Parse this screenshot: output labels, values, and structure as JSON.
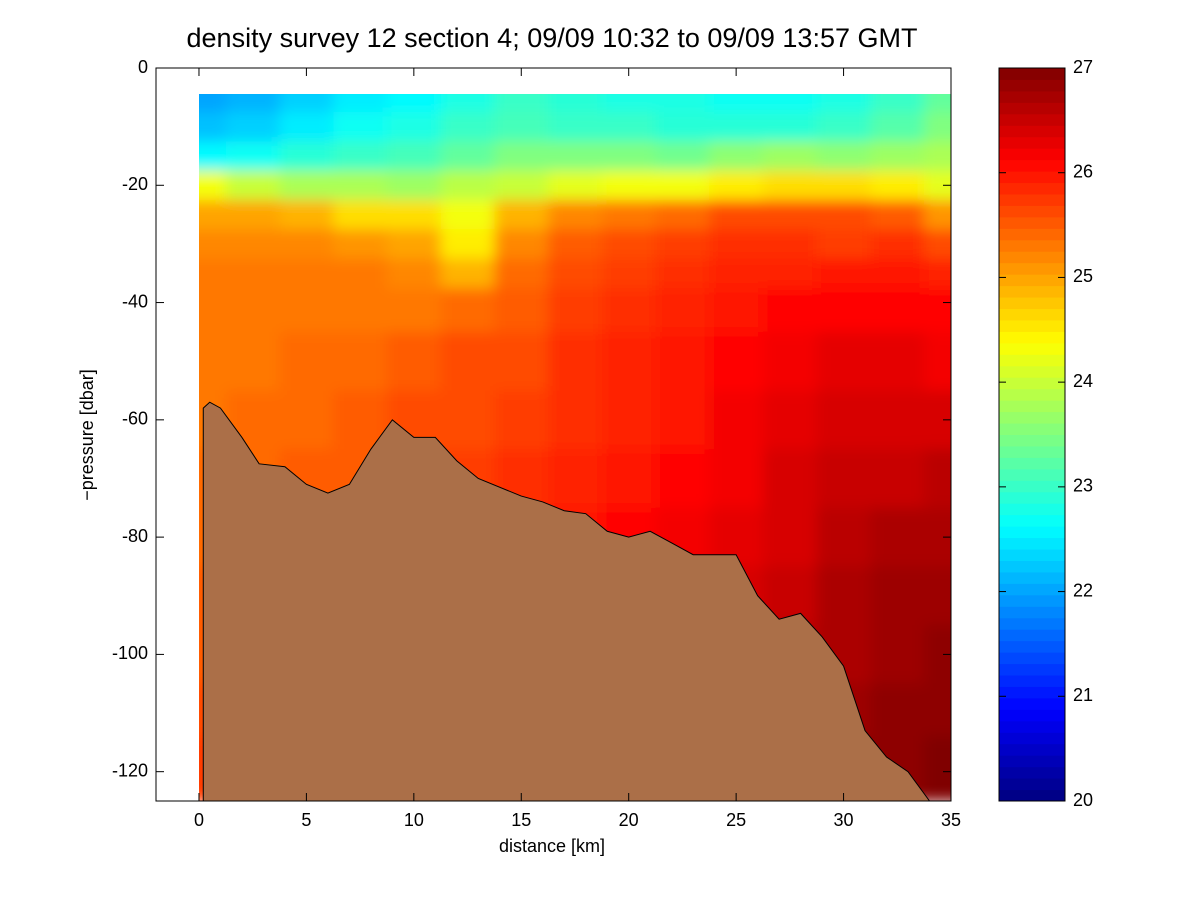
{
  "chart_data": {
    "type": "contour",
    "title": "density survey 12 section 4; 09/09 10:32 to 09/09 13:57 GMT",
    "xlabel": "distance [km]",
    "ylabel": "−pressure [dbar]",
    "xlim": [
      -2,
      35
    ],
    "xticks": [
      0,
      5,
      10,
      15,
      20,
      25,
      30,
      35
    ],
    "ylim": [
      -125,
      0
    ],
    "yticks": [
      0,
      -20,
      -40,
      -60,
      -80,
      -100,
      -120
    ],
    "colormap": "jet",
    "clim": [
      20,
      27
    ],
    "cticks": [
      20,
      21,
      22,
      23,
      24,
      25,
      26,
      27
    ],
    "field": {
      "x": [
        0,
        2.5,
        5,
        7.5,
        10,
        12.5,
        15,
        17.5,
        20,
        22.5,
        25,
        27.5,
        30,
        32.5,
        35
      ],
      "y": [
        -5,
        -10,
        -15,
        -20,
        -25,
        -30,
        -35,
        -40,
        -50,
        -60,
        -70,
        -80,
        -90,
        -100,
        -110,
        -118
      ],
      "values": [
        [
          22.0,
          22.1,
          22.3,
          22.5,
          22.6,
          22.8,
          23.0,
          22.9,
          22.8,
          22.8,
          22.7,
          22.7,
          22.8,
          23.0,
          23.3
        ],
        [
          22.2,
          22.3,
          22.5,
          22.7,
          22.8,
          23.0,
          23.1,
          23.0,
          23.0,
          22.9,
          22.9,
          22.9,
          23.0,
          23.2,
          23.5
        ],
        [
          22.6,
          22.7,
          22.9,
          23.0,
          23.1,
          23.3,
          23.5,
          23.5,
          23.5,
          23.4,
          23.6,
          23.7,
          23.6,
          23.7,
          23.8
        ],
        [
          24.3,
          24.0,
          23.8,
          23.8,
          23.7,
          23.9,
          24.0,
          24.2,
          24.3,
          24.3,
          24.5,
          24.6,
          24.6,
          24.5,
          24.2
        ],
        [
          25.0,
          25.0,
          24.9,
          24.6,
          24.6,
          24.3,
          24.9,
          25.2,
          25.3,
          25.4,
          25.6,
          25.6,
          25.6,
          25.5,
          25.1
        ],
        [
          25.2,
          25.2,
          25.2,
          25.1,
          25.0,
          24.5,
          25.2,
          25.5,
          25.6,
          25.7,
          25.8,
          25.8,
          25.7,
          25.8,
          25.6
        ],
        [
          25.3,
          25.3,
          25.3,
          25.3,
          25.2,
          24.9,
          25.4,
          25.6,
          25.7,
          25.8,
          25.9,
          25.9,
          26.0,
          26.0,
          25.9
        ],
        [
          25.3,
          25.3,
          25.3,
          25.3,
          25.3,
          25.4,
          25.5,
          25.7,
          25.8,
          25.9,
          26.0,
          26.1,
          26.1,
          26.1,
          26.1
        ],
        [
          25.3,
          25.3,
          25.4,
          25.4,
          25.5,
          25.6,
          25.6,
          25.8,
          25.9,
          26.0,
          26.1,
          26.2,
          26.3,
          26.3,
          26.2
        ],
        [
          25.3,
          25.4,
          25.4,
          25.5,
          25.6,
          25.6,
          25.7,
          25.8,
          25.9,
          26.0,
          26.2,
          26.3,
          26.4,
          26.4,
          26.4
        ],
        [
          25.4,
          25.4,
          25.5,
          25.5,
          25.6,
          25.7,
          25.8,
          25.9,
          26.0,
          26.1,
          26.2,
          26.4,
          26.5,
          26.5,
          26.6
        ],
        [
          25.4,
          25.5,
          25.5,
          25.6,
          25.7,
          25.8,
          25.9,
          26.0,
          26.1,
          26.2,
          26.3,
          26.4,
          26.6,
          26.7,
          26.7
        ],
        [
          25.5,
          25.5,
          25.6,
          25.7,
          25.8,
          25.9,
          26.0,
          26.1,
          26.2,
          26.3,
          26.4,
          26.5,
          26.7,
          26.8,
          26.8
        ],
        [
          25.5,
          25.6,
          25.7,
          25.8,
          25.9,
          26.0,
          26.1,
          26.2,
          26.3,
          26.4,
          26.5,
          26.6,
          26.7,
          26.8,
          26.9
        ],
        [
          25.6,
          25.7,
          25.8,
          25.9,
          26.0,
          26.1,
          26.2,
          26.3,
          26.4,
          26.5,
          26.6,
          26.7,
          26.8,
          26.9,
          26.9
        ],
        [
          25.7,
          25.8,
          25.9,
          26.0,
          26.1,
          26.2,
          26.3,
          26.4,
          26.5,
          26.6,
          26.7,
          26.8,
          26.9,
          26.9,
          27.0
        ]
      ]
    },
    "seafloor": {
      "color": "#ab6f48",
      "x": [
        0.2,
        0.2,
        0.5,
        1,
        2,
        2.8,
        4,
        5,
        6,
        7,
        8,
        9,
        10,
        11,
        12,
        13,
        15,
        16,
        17,
        18,
        19,
        20,
        21,
        22,
        23,
        24,
        25,
        26,
        27,
        28,
        29,
        30,
        31,
        32,
        33,
        34
      ],
      "y": [
        -125,
        -58,
        -57,
        -58,
        -63,
        -67.5,
        -68,
        -71,
        -72.5,
        -71,
        -65,
        -60,
        -63,
        -63,
        -67,
        -70,
        -73,
        -74,
        -75.5,
        -76,
        -79,
        -80,
        -79,
        -81,
        -83,
        -83,
        -83,
        -90,
        -94,
        -93,
        -97,
        -102,
        -113,
        -117.5,
        -120,
        -125
      ]
    }
  }
}
